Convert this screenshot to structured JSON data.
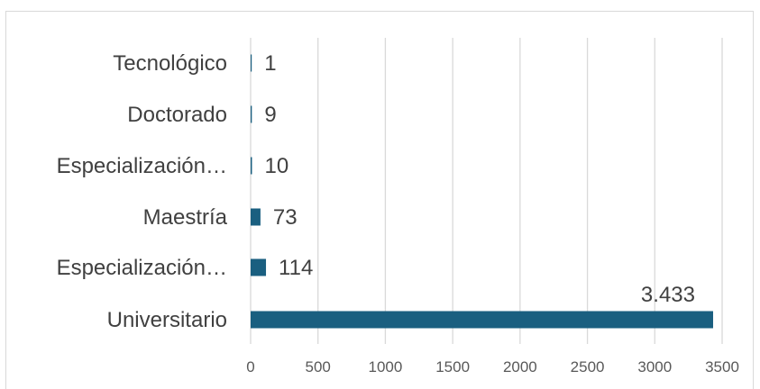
{
  "chart_data": {
    "type": "bar",
    "orientation": "horizontal",
    "categories": [
      "Tecnológico",
      "Doctorado",
      "Especialización…",
      "Maestría",
      "Especialización…",
      "Universitario"
    ],
    "values": [
      1,
      9,
      10,
      73,
      114,
      3433
    ],
    "value_labels": [
      "1",
      "9",
      "10",
      "73",
      "114",
      "3.433"
    ],
    "x_ticks": [
      0,
      500,
      1000,
      1500,
      2000,
      2500,
      3000,
      3500
    ],
    "xlim": [
      0,
      3500
    ],
    "title": "",
    "xlabel": "",
    "ylabel": "",
    "grid": true,
    "legend": "none",
    "colors": {
      "bar": "#1a5f80",
      "grid": "#d9d9d9",
      "text": "#404040",
      "tick_text": "#595959"
    }
  }
}
